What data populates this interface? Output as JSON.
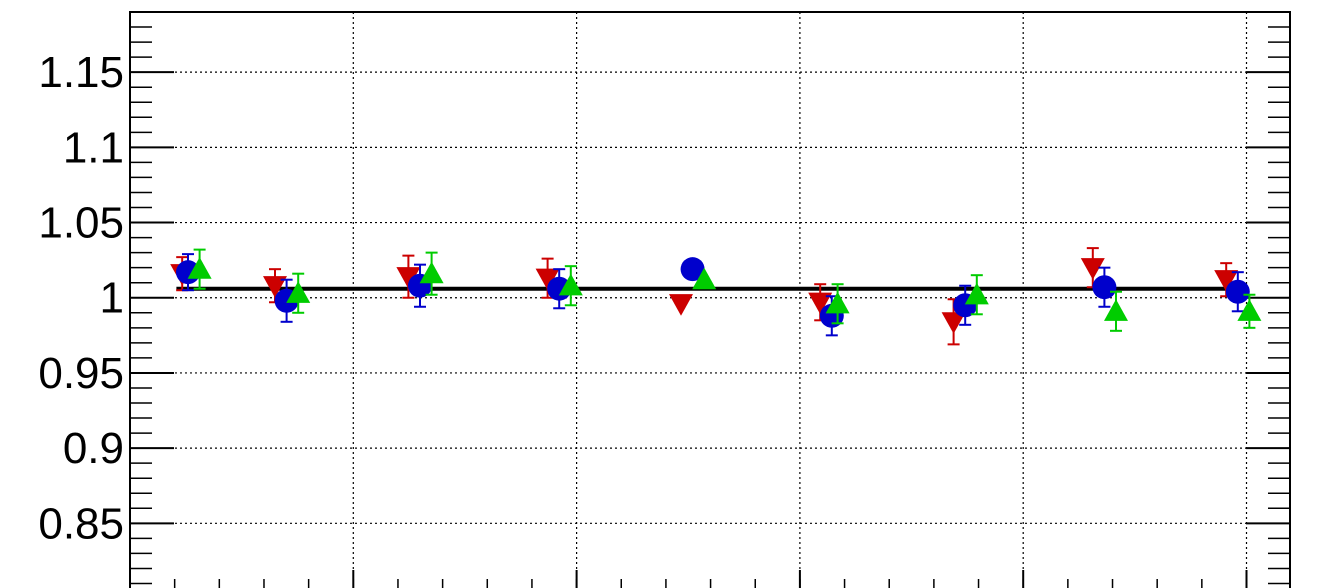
{
  "chart_data": {
    "type": "scatter",
    "title": "",
    "xlabel": "",
    "ylabel": "",
    "ylim": [
      0.807,
      1.19
    ],
    "xlim": [
      0,
      10
    ],
    "grid": true,
    "y_ticks": [
      {
        "value": 0.85,
        "label": "0.85"
      },
      {
        "value": 0.9,
        "label": "0.9"
      },
      {
        "value": 0.95,
        "label": "0.95"
      },
      {
        "value": 1.0,
        "label": "1"
      },
      {
        "value": 1.05,
        "label": "1.05"
      },
      {
        "value": 1.1,
        "label": "1.1"
      },
      {
        "value": 1.15,
        "label": "1.15"
      }
    ],
    "x_grid": [
      1.925,
      3.85,
      5.775,
      7.7,
      9.625
    ],
    "reference_line": {
      "y": 1.006,
      "x_start": 0.4,
      "x_end": 9.6,
      "color": "#000000"
    },
    "series": [
      {
        "marker": "triangle-down",
        "color": "#cc0000",
        "x": [
          0.45,
          1.25,
          2.4,
          3.6,
          4.75,
          5.95,
          7.1,
          8.3,
          9.45
        ],
        "y": [
          1.016,
          1.008,
          1.014,
          1.013,
          0.996,
          0.997,
          0.984,
          1.02,
          1.012
        ],
        "err": [
          0.011,
          0.011,
          0.014,
          0.013,
          0,
          0.012,
          0.015,
          0.013,
          0.011
        ]
      },
      {
        "marker": "circle",
        "color": "#0000cc",
        "x": [
          0.5,
          1.35,
          2.5,
          3.7,
          4.85,
          6.05,
          7.2,
          8.4,
          9.55
        ],
        "y": [
          1.017,
          0.998,
          1.008,
          1.006,
          1.019,
          0.988,
          0.995,
          1.007,
          1.004
        ],
        "err": [
          0.012,
          0.014,
          0.014,
          0.013,
          0,
          0.013,
          0.013,
          0.013,
          0.013
        ]
      },
      {
        "marker": "triangle-up",
        "color": "#00cc00",
        "x": [
          0.6,
          1.45,
          2.6,
          3.8,
          4.95,
          6.1,
          7.3,
          8.5,
          9.65
        ],
        "y": [
          1.019,
          1.003,
          1.016,
          1.008,
          1.012,
          0.996,
          1.002,
          0.991,
          0.991
        ],
        "err": [
          0.013,
          0.013,
          0.014,
          0.013,
          0,
          0.013,
          0.013,
          0.013,
          0.011
        ]
      }
    ]
  }
}
